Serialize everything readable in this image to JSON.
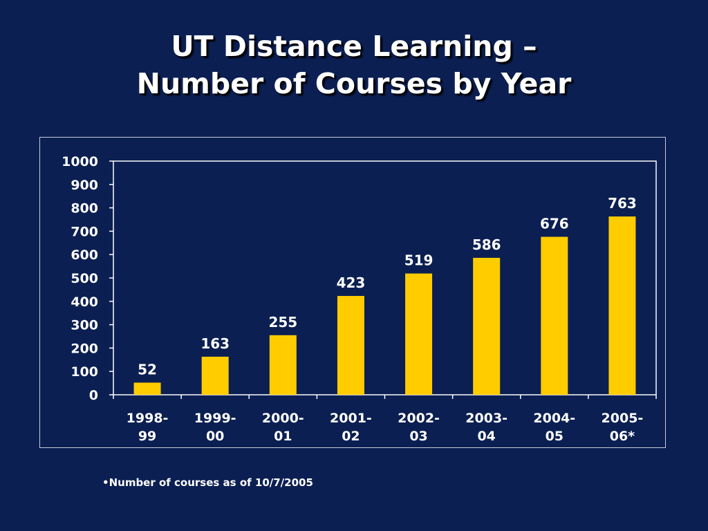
{
  "title": {
    "line1": "UT Distance Learning –",
    "line2": "Number of Courses by Year"
  },
  "footnote": "•Number of courses as of 10/7/2005",
  "colors": {
    "background": "#0b1f52",
    "bar": "#ffcc00",
    "text": "#ffffff",
    "axis": "#ffffff",
    "frame": "#c8cdd8"
  },
  "chart_data": {
    "type": "bar",
    "title": "",
    "xlabel": "",
    "ylabel": "",
    "categories": [
      [
        "1998-",
        "99"
      ],
      [
        "1999-",
        "00"
      ],
      [
        "2000-",
        "01"
      ],
      [
        "2001-",
        "02"
      ],
      [
        "2002-",
        "03"
      ],
      [
        "2003-",
        "04"
      ],
      [
        "2004-",
        "05"
      ],
      [
        "2005-",
        "06*"
      ]
    ],
    "values": [
      52,
      163,
      255,
      423,
      519,
      586,
      676,
      763
    ],
    "data_labels": [
      "52",
      "163",
      "255",
      "423",
      "519",
      "586",
      "676",
      "763"
    ],
    "ylim": [
      0,
      1000
    ],
    "yticks": [
      0,
      100,
      200,
      300,
      400,
      500,
      600,
      700,
      800,
      900,
      1000
    ],
    "grid": false,
    "legend": "none"
  }
}
